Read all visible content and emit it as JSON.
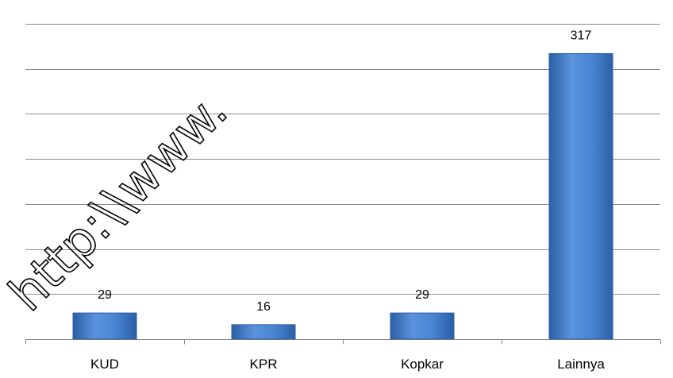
{
  "chart_data": {
    "type": "bar",
    "categories": [
      "KUD",
      "KPR",
      "Kopkar",
      "Lainnya"
    ],
    "values": [
      29,
      16,
      29,
      317
    ],
    "data_labels": [
      "29",
      "16",
      "29",
      "317"
    ],
    "title": "",
    "xlabel": "",
    "ylabel": "",
    "ylim": [
      0,
      350
    ],
    "grid": true,
    "legend": "none",
    "colors": {
      "bar": "#3c78c8",
      "bar_light": "#6a9fe0",
      "bar_dark": "#2b5fa6",
      "bar_edge": "#2d5f9e",
      "grid": "#8c8c8c",
      "axis": "#8c8c8c"
    }
  },
  "watermark": {
    "text": "http:\\\\www."
  }
}
